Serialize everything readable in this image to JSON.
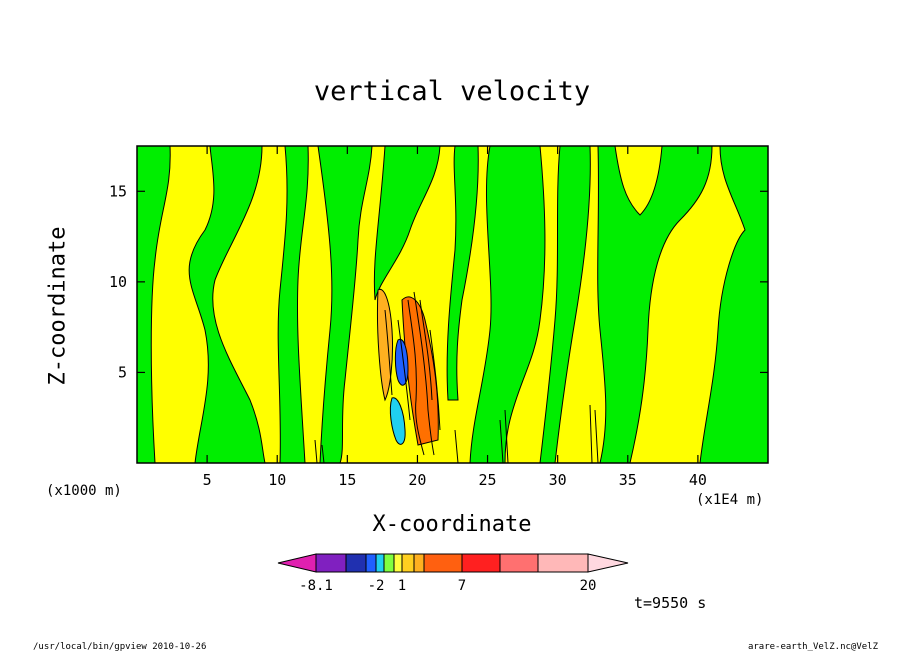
{
  "chart_data": {
    "type": "heatmap",
    "title": "vertical velocity",
    "xlabel": "X-coordinate",
    "ylabel": "Z-coordinate",
    "x_unit": "(x1000 m)",
    "x_multiplier": "(x1E4 m)",
    "xlim": [
      0,
      45
    ],
    "ylim": [
      0,
      17.5
    ],
    "x_ticks": [
      5,
      10,
      15,
      20,
      25,
      30,
      35,
      40
    ],
    "y_ticks": [
      5,
      10,
      15
    ],
    "colorbar": {
      "levels": [
        -8.1,
        -2,
        1,
        7,
        20
      ],
      "labels": [
        "-8.1",
        "-2",
        "1",
        "7",
        "20"
      ],
      "colors": [
        "#e020b0",
        "#8020c0",
        "#2030b0",
        "#2060ff",
        "#20d0f0",
        "#80ff40",
        "#ffff40",
        "#ffd020",
        "#ffb020",
        "#ff6010",
        "#ff2020",
        "#ff7070",
        "#ffb8b8",
        "#ffd8e0"
      ]
    },
    "dominant_fields": {
      "positive_small": "#ffff00",
      "negative_small": "#00ee00",
      "updraft_core": "#ff7000",
      "downdraft_core": "#20d0f0"
    }
  },
  "annotations": {
    "time": "t=9550 s",
    "footer_left": "/usr/local/bin/gpview  2010-10-26",
    "footer_right": "arare-earth_VelZ.nc@VelZ"
  }
}
